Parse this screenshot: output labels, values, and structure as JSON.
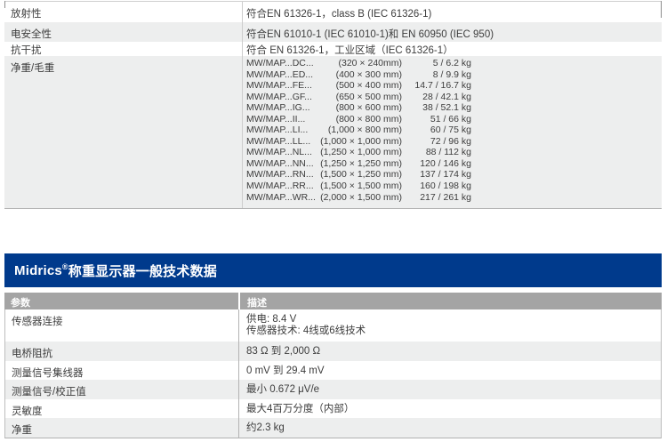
{
  "colors": {
    "section_header_blue": "#003a8c",
    "column_header_gray": "#a4a4a4",
    "alt_row_gray": "#edeeee",
    "body_text": "#3d3d3d"
  },
  "top_table": {
    "rows": [
      {
        "param": "放射性",
        "desc": "符合EN 61326-1，class B (IEC 61326-1)"
      },
      {
        "param": "电安全性",
        "desc": "符合EN 61010-1 (IEC 61010-1)和 EN 60950 (IEC 950)"
      },
      {
        "param": "抗干扰",
        "desc": "符合 EN 61326-1，工业区域（IEC 61326-1）"
      }
    ],
    "weight_row": {
      "param": "净重/毛重",
      "models": [
        {
          "name": "MW/MAP...DC...",
          "size": "(320 × 240mm)",
          "weight": "5 / 6.2 kg"
        },
        {
          "name": "MW/MAP...ED...",
          "size": "(400 × 300 mm)",
          "weight": "8 / 9.9 kg"
        },
        {
          "name": "MW/MAP...FE...",
          "size": "(500 × 400 mm)",
          "weight": "14.7 / 16.7 kg"
        },
        {
          "name": "MW/MAP...GF...",
          "size": "(650 × 500 mm)",
          "weight": "28 / 42.1 kg"
        },
        {
          "name": "MW/MAP...IG...",
          "size": "(800 × 600 mm)",
          "weight": "38 / 52.1 kg"
        },
        {
          "name": "MW/MAP...II...",
          "size": "(800 × 800 mm)",
          "weight": "51 / 66 kg"
        },
        {
          "name": "MW/MAP...LI...",
          "size": "(1,000 × 800 mm)",
          "weight": "60 / 75 kg"
        },
        {
          "name": "MW/MAP...LL...",
          "size": "(1,000 × 1,000 mm)",
          "weight": "72 / 96 kg"
        },
        {
          "name": "MW/MAP...NL...",
          "size": "(1,250 × 1,000 mm)",
          "weight": "88 / 112 kg"
        },
        {
          "name": "MW/MAP...NN...",
          "size": "(1,250 × 1,250 mm)",
          "weight": "120 / 146 kg"
        },
        {
          "name": "MW/MAP...RN...",
          "size": "(1,500 × 1,250 mm)",
          "weight": "137 / 174 kg"
        },
        {
          "name": "MW/MAP...RR...",
          "size": "(1,500 × 1,500 mm)",
          "weight": "160 / 198 kg"
        },
        {
          "name": "MW/MAP...WR...",
          "size": "(2,000 × 1,500 mm)",
          "weight": "217 / 261 kg"
        }
      ]
    }
  },
  "section2": {
    "title_brand": "Midrics",
    "title_reg": "®",
    "title_rest": "称重显示器一般技术数据",
    "col_headers": {
      "param": "参数",
      "desc": "描述"
    },
    "rows": [
      {
        "param": "传感器连接",
        "desc_lines": [
          "供电: 8.4 V",
          "传感器技术: 4线或6线技术"
        ]
      },
      {
        "param": "电桥阻抗",
        "desc_lines": [
          "83 Ω 到 2,000 Ω"
        ]
      },
      {
        "param": "测量信号集线器",
        "desc_lines": [
          "0 mV 到 29.4 mV"
        ]
      },
      {
        "param": "测量信号/校正值",
        "desc_lines": [
          "最小 0.672 μV/e"
        ]
      },
      {
        "param": "灵敏度",
        "desc_lines": [
          "最大4百万分度（内部）"
        ]
      },
      {
        "param": "净重",
        "desc_lines": [
          "约2.3 kg"
        ]
      }
    ]
  }
}
